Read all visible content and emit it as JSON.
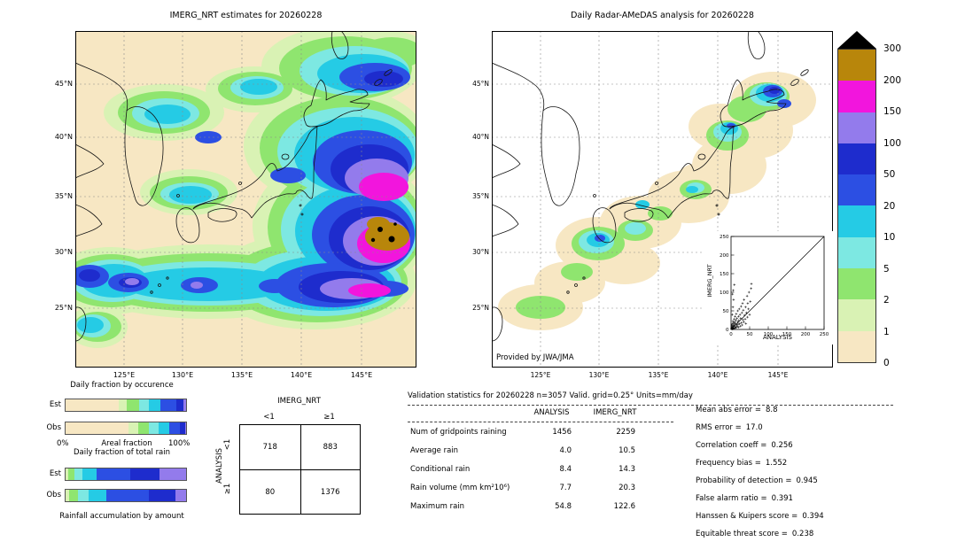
{
  "palette": {
    "level_0": "#f7e7c3",
    "level_1": "#d9f2b4",
    "level_2": "#8fe56f",
    "level_5": "#7de8e2",
    "level_10": "#25cbe5",
    "level_20": "#2c4fe3",
    "level_50": "#1e2ccd",
    "level_100": "#937bec",
    "level_150": "#f215dd",
    "level_200": "#b8860b",
    "level_over_300": "#000000"
  },
  "chart_data": [
    {
      "key": "imerg_map",
      "type": "heatmap",
      "title": "IMERG_NRT estimates for 20260228",
      "lat_ticks": [
        "45°N",
        "40°N",
        "35°N",
        "30°N",
        "25°N"
      ],
      "lon_ticks": [
        "125°E",
        "130°E",
        "135°E",
        "140°E",
        "145°E"
      ],
      "units": "mm/day",
      "description": "Gridded precipitation over Japan; intense rain (150-300+ mm/day, magenta/brown/black core) southeast of Honshu near 29-34N 141-148E, broad blue/cyan rain shield east of Japan, rain band along 25-27N, lighter green/cyan patches over the Sea of Japan and near Taiwan."
    },
    {
      "key": "radar_amedas_map",
      "type": "heatmap",
      "title": "Daily Radar-AMeDAS analysis for 20260228",
      "lat_ticks": [
        "45°N",
        "40°N",
        "35°N",
        "30°N",
        "25°N"
      ],
      "lon_ticks": [
        "125°E",
        "130°E",
        "135°E",
        "140°E",
        "145°E"
      ],
      "units": "mm/day",
      "credit": "Provided by JWA/JMA",
      "description": "Radar-gauge analysis limited to radar coverage along the Japanese archipelago; light rain swath over the islands, green/cyan cells near Kyushu and Okinawa, strong blue cell (20-100 mm/day) over eastern Hokkaido."
    },
    {
      "key": "colorbar",
      "type": "legend",
      "boundary_labels": [
        "300",
        "200",
        "150",
        "100",
        "50",
        "20",
        "10",
        "5",
        "2",
        "1",
        "0"
      ],
      "segment_colors_top_to_bottom": [
        "#b8860b",
        "#f215dd",
        "#937bec",
        "#1e2ccd",
        "#2c4fe3",
        "#25cbe5",
        "#7de8e2",
        "#8fe56f",
        "#d9f2b4",
        "#f7e7c3"
      ],
      "over_color": "#000000"
    },
    {
      "key": "fraction_occurrence",
      "type": "bar",
      "title": "Daily fraction by occurence",
      "rows": [
        "Est",
        "Obs"
      ],
      "axis": {
        "min_label": "0%",
        "label": "Areal fraction",
        "max_label": "100%"
      },
      "est_segments": [
        {
          "color": "#f7e7c3",
          "pct": 44
        },
        {
          "color": "#d9f2b4",
          "pct": 7
        },
        {
          "color": "#8fe56f",
          "pct": 10
        },
        {
          "color": "#7de8e2",
          "pct": 8
        },
        {
          "color": "#25cbe5",
          "pct": 10
        },
        {
          "color": "#2c4fe3",
          "pct": 13
        },
        {
          "color": "#1e2ccd",
          "pct": 6
        },
        {
          "color": "#937bec",
          "pct": 2
        }
      ],
      "obs_segments": [
        {
          "color": "#f7e7c3",
          "pct": 52
        },
        {
          "color": "#d9f2b4",
          "pct": 8
        },
        {
          "color": "#8fe56f",
          "pct": 9
        },
        {
          "color": "#7de8e2",
          "pct": 8
        },
        {
          "color": "#25cbe5",
          "pct": 9
        },
        {
          "color": "#2c4fe3",
          "pct": 9
        },
        {
          "color": "#1e2ccd",
          "pct": 4
        },
        {
          "color": "#937bec",
          "pct": 1
        }
      ]
    },
    {
      "key": "fraction_total_rain",
      "type": "bar",
      "title": "Daily fraction of total rain",
      "rows": [
        "Est",
        "Obs"
      ],
      "caption": "Rainfall accumulation by amount",
      "est_segments": [
        {
          "color": "#d9f2b4",
          "pct": 2
        },
        {
          "color": "#8fe56f",
          "pct": 5
        },
        {
          "color": "#7de8e2",
          "pct": 7
        },
        {
          "color": "#25cbe5",
          "pct": 12
        },
        {
          "color": "#2c4fe3",
          "pct": 28
        },
        {
          "color": "#1e2ccd",
          "pct": 24
        },
        {
          "color": "#937bec",
          "pct": 22
        }
      ],
      "obs_segments": [
        {
          "color": "#d9f2b4",
          "pct": 3
        },
        {
          "color": "#8fe56f",
          "pct": 7
        },
        {
          "color": "#7de8e2",
          "pct": 9
        },
        {
          "color": "#25cbe5",
          "pct": 15
        },
        {
          "color": "#2c4fe3",
          "pct": 35
        },
        {
          "color": "#1e2ccd",
          "pct": 22
        },
        {
          "color": "#937bec",
          "pct": 9
        }
      ]
    },
    {
      "key": "contingency",
      "type": "table",
      "title": "IMERG_NRT",
      "row_axis": "ANALYSIS",
      "col_labels": [
        "<1",
        "≥1"
      ],
      "row_labels": [
        "<1",
        "≥1"
      ],
      "values": [
        [
          718,
          883
        ],
        [
          80,
          1376
        ]
      ]
    },
    {
      "key": "validation_stats",
      "type": "table",
      "header": "Validation statistics for 20260228  n=3057 Valid. grid=0.25° Units=mm/day",
      "columns": [
        "ANALYSIS",
        "IMERG_NRT"
      ],
      "rows": [
        {
          "label": "Num of gridpoints raining",
          "analysis": "1456",
          "imerg": "2259"
        },
        {
          "label": "Average rain",
          "analysis": "4.0",
          "imerg": "10.5"
        },
        {
          "label": "Conditional rain",
          "analysis": "8.4",
          "imerg": "14.3"
        },
        {
          "label": "Rain volume (mm km²10⁶)",
          "analysis": "7.7",
          "imerg": "20.3"
        },
        {
          "label": "Maximum rain",
          "analysis": "54.8",
          "imerg": "122.6"
        }
      ],
      "side": [
        {
          "label": "Mean abs error =",
          "value": "8.8"
        },
        {
          "label": "RMS error =",
          "value": "17.0"
        },
        {
          "label": "Correlation coeff =",
          "value": "0.256"
        },
        {
          "label": "Frequency bias =",
          "value": "1.552"
        },
        {
          "label": "Probability of detection =",
          "value": "0.945"
        },
        {
          "label": "False alarm ratio =",
          "value": "0.391"
        },
        {
          "label": "Hanssen & Kuipers score =",
          "value": "0.394"
        },
        {
          "label": "Equitable threat score =",
          "value": "0.238"
        }
      ]
    },
    {
      "key": "scatter_inset",
      "type": "scatter",
      "xlabel": "ANALYSIS",
      "ylabel": "IMERG_NRT",
      "xlim": [
        0,
        250
      ],
      "ylim": [
        0,
        250
      ],
      "ticks": [
        0,
        50,
        100,
        150,
        200,
        250
      ],
      "identity_line": true,
      "points": [
        [
          1,
          2
        ],
        [
          2,
          5
        ],
        [
          2,
          12
        ],
        [
          3,
          1
        ],
        [
          3,
          8
        ],
        [
          3,
          40
        ],
        [
          4,
          3
        ],
        [
          4,
          15
        ],
        [
          4,
          95
        ],
        [
          5,
          7
        ],
        [
          5,
          22
        ],
        [
          5,
          60
        ],
        [
          6,
          2
        ],
        [
          6,
          11
        ],
        [
          6,
          105
        ],
        [
          7,
          4
        ],
        [
          7,
          18
        ],
        [
          7,
          80
        ],
        [
          8,
          9
        ],
        [
          8,
          28
        ],
        [
          9,
          14
        ],
        [
          9,
          120
        ],
        [
          10,
          3
        ],
        [
          10,
          20
        ],
        [
          11,
          35
        ],
        [
          12,
          7
        ],
        [
          12,
          16
        ],
        [
          13,
          25
        ],
        [
          14,
          5
        ],
        [
          14,
          42
        ],
        [
          15,
          12
        ],
        [
          16,
          30
        ],
        [
          17,
          8
        ],
        [
          18,
          20
        ],
        [
          18,
          50
        ],
        [
          19,
          14
        ],
        [
          20,
          6
        ],
        [
          20,
          35
        ],
        [
          21,
          24
        ],
        [
          22,
          55
        ],
        [
          23,
          15
        ],
        [
          24,
          40
        ],
        [
          25,
          9
        ],
        [
          26,
          30
        ],
        [
          27,
          62
        ],
        [
          28,
          18
        ],
        [
          29,
          45
        ],
        [
          30,
          12
        ],
        [
          31,
          70
        ],
        [
          32,
          26
        ],
        [
          33,
          52
        ],
        [
          34,
          20
        ],
        [
          35,
          80
        ],
        [
          36,
          38
        ],
        [
          38,
          28
        ],
        [
          39,
          60
        ],
        [
          40,
          16
        ],
        [
          41,
          45
        ],
        [
          43,
          90
        ],
        [
          44,
          33
        ],
        [
          45,
          70
        ],
        [
          47,
          55
        ],
        [
          48,
          100
        ],
        [
          50,
          40
        ],
        [
          52,
          75
        ],
        [
          54,
          110
        ],
        [
          54.8,
          122.6
        ]
      ]
    }
  ]
}
